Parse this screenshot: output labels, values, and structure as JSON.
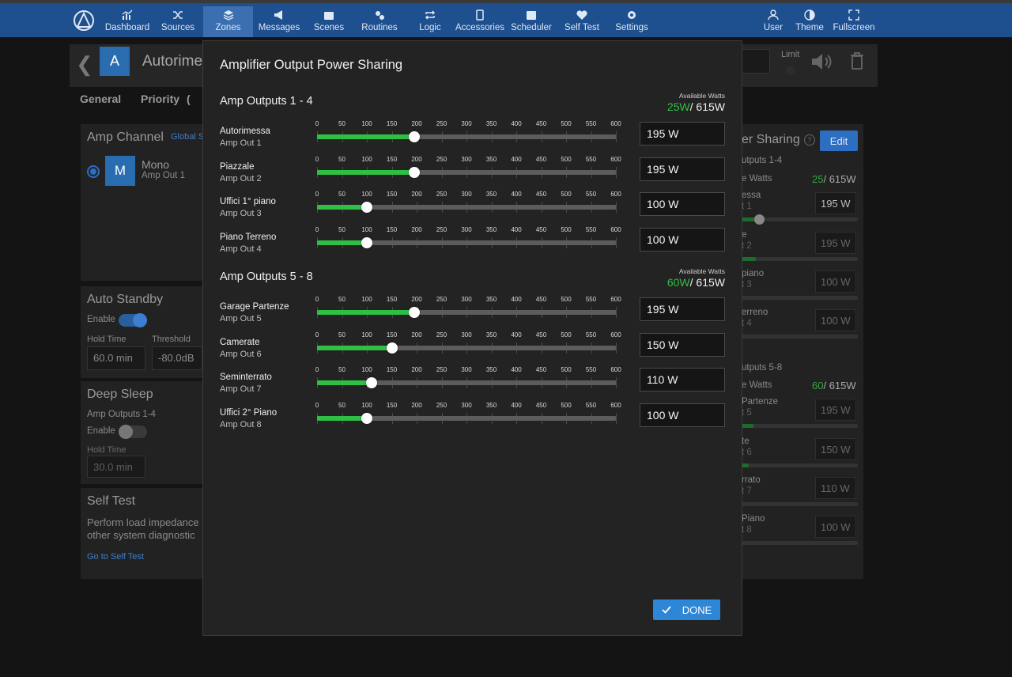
{
  "nav": {
    "items": [
      {
        "label": "Dashboard",
        "icon": "chart-icon"
      },
      {
        "label": "Sources",
        "icon": "shuffle-icon"
      },
      {
        "label": "Zones",
        "icon": "layers-icon",
        "active": true
      },
      {
        "label": "Messages",
        "icon": "megaphone-icon"
      },
      {
        "label": "Scenes",
        "icon": "scene-icon"
      },
      {
        "label": "Routines",
        "icon": "cogs-icon"
      },
      {
        "label": "Logic",
        "icon": "loop-icon"
      },
      {
        "label": "Accessories",
        "icon": "tablet-icon"
      },
      {
        "label": "Scheduler",
        "icon": "calendar-icon"
      },
      {
        "label": "Self Test",
        "icon": "heart-gear-icon"
      },
      {
        "label": "Settings",
        "icon": "gear-icon"
      }
    ],
    "right_items": [
      {
        "label": "User",
        "icon": "user-icon"
      },
      {
        "label": "Theme",
        "icon": "half-circle-icon"
      },
      {
        "label": "Fullscreen",
        "icon": "fullscreen-icon"
      }
    ]
  },
  "background": {
    "zone_avatar": "A",
    "zone_title": "Autorime",
    "limit_label": "Limit",
    "tabs": [
      "General",
      "Priority",
      "("
    ],
    "amp_channel": {
      "title": "Amp Channel",
      "link": "Global S",
      "avatar": "M",
      "mode": "Mono",
      "output": "Amp Out 1"
    },
    "auto_standby": {
      "title": "Auto Standby",
      "enable": "Enable",
      "hold_time_label": "Hold Time",
      "threshold_label": "Threshold",
      "hold_time": "60.0 min",
      "threshold": "-80.0dB"
    },
    "deep_sleep": {
      "title": "Deep Sleep",
      "outputs": "Amp Outputs 1-4",
      "enable": "Enable",
      "hold_time_label": "Hold Time",
      "hold_time": "30.0 min"
    },
    "self_test": {
      "title": "Self Test",
      "desc1": "Perform load impedance",
      "desc2": "other system diagnostic",
      "link": "Go to Self Test"
    },
    "power_sharing": {
      "title": "er Sharing",
      "edit": "Edit",
      "group1": "utputs 1-4",
      "group1_avail_label": "e Watts",
      "group1_used": "25",
      "group1_total": "/ 615W",
      "group2": "utputs 5-8",
      "group2_avail_label": "e Watts",
      "group2_used": "60",
      "group2_total": "/ 615W",
      "rows": [
        {
          "name": "essa",
          "sub": "t 1",
          "value": "195 W"
        },
        {
          "name": "e",
          "sub": "t 2",
          "value": "195 W"
        },
        {
          "name": "piano",
          "sub": "t 3",
          "value": "100 W"
        },
        {
          "name": "erreno",
          "sub": "t 4",
          "value": "100 W"
        },
        {
          "name": "Partenze",
          "sub": "t 5",
          "value": "195 W"
        },
        {
          "name": "te",
          "sub": "t 6",
          "value": "150 W"
        },
        {
          "name": "rrato",
          "sub": "t 7",
          "value": "110 W"
        },
        {
          "name": "Piano",
          "sub": "t 8",
          "value": "100 W"
        }
      ]
    }
  },
  "modal": {
    "title": "Amplifier Output Power Sharing",
    "scale_ticks": [
      "0",
      "50",
      "100",
      "150",
      "200",
      "250",
      "300",
      "350",
      "400",
      "450",
      "500",
      "550",
      "600"
    ],
    "scale_max": 600,
    "groups": [
      {
        "title": "Amp Outputs 1 - 4",
        "avail_label": "Available Watts",
        "used": "25W",
        "total": "/ 615W",
        "rows": [
          {
            "name": "Autorimessa",
            "sub": "Amp Out 1",
            "watts": 195,
            "value": "195 W"
          },
          {
            "name": "Piazzale",
            "sub": "Amp Out 2",
            "watts": 195,
            "value": "195 W"
          },
          {
            "name": "Uffici 1° piano",
            "sub": "Amp Out 3",
            "watts": 100,
            "value": "100 W"
          },
          {
            "name": "Piano Terreno",
            "sub": "Amp Out 4",
            "watts": 100,
            "value": "100 W"
          }
        ]
      },
      {
        "title": "Amp Outputs 5 - 8",
        "avail_label": "Available Watts",
        "used": "60W",
        "total": "/ 615W",
        "rows": [
          {
            "name": "Garage Partenze",
            "sub": "Amp Out 5",
            "watts": 195,
            "value": "195 W"
          },
          {
            "name": "Camerate",
            "sub": "Amp Out 6",
            "watts": 150,
            "value": "150 W"
          },
          {
            "name": "Seminterrato",
            "sub": "Amp Out 7",
            "watts": 110,
            "value": "110 W"
          },
          {
            "name": "Uffici 2° Piano",
            "sub": "Amp Out 8",
            "watts": 100,
            "value": "100 W"
          }
        ]
      }
    ],
    "done_label": "DONE"
  },
  "colors": {
    "accent": "#2e86d6",
    "nav_bg": "#1e4f8f",
    "slider_fill": "#2fbf45",
    "available_used": "#2fbf45"
  }
}
